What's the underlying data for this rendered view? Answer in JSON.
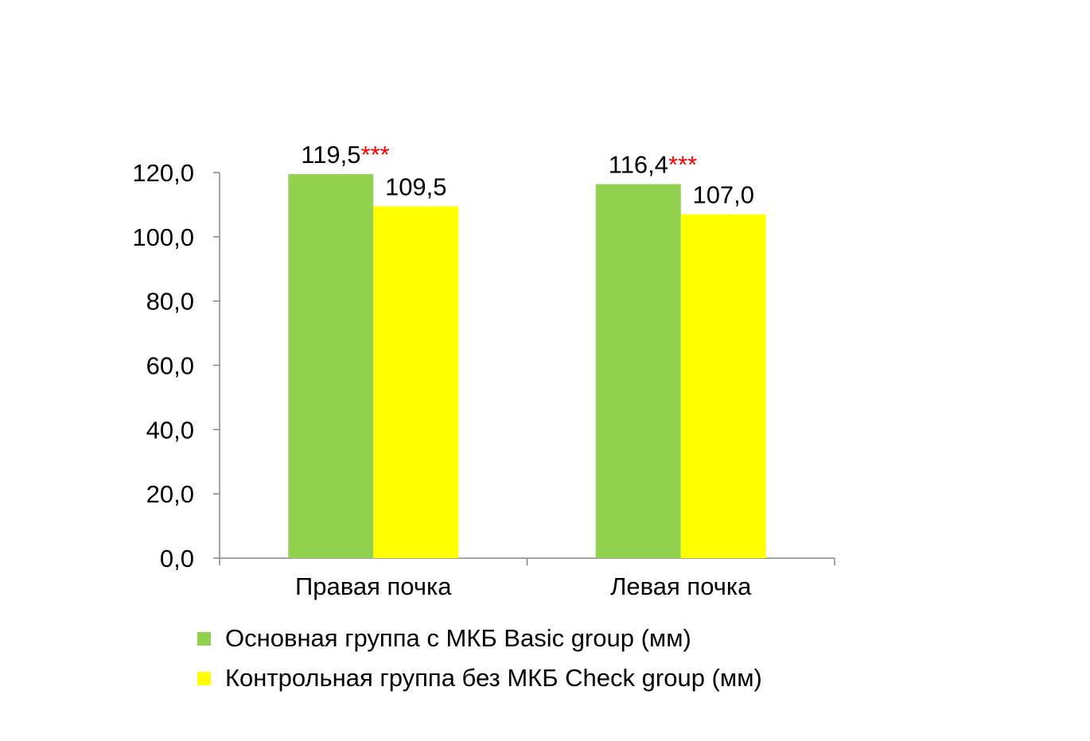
{
  "chart_data": {
    "type": "bar",
    "categories": [
      "Правая почка",
      "Левая почка"
    ],
    "series": [
      {
        "name": "Основная группа с МКБ Basic group (мм)",
        "values": [
          119.5,
          116.4
        ],
        "labels": [
          "119,5",
          "116,4"
        ],
        "marks": [
          "***",
          "***"
        ],
        "color": "#92d050"
      },
      {
        "name": "Контрольная группа без МКБ Check group (мм)",
        "values": [
          109.5,
          107.0
        ],
        "labels": [
          "109,5",
          "107,0"
        ],
        "marks": [
          "",
          ""
        ],
        "color": "#ffff00"
      }
    ],
    "ylim": [
      0,
      120
    ],
    "yticks": [
      0,
      20,
      40,
      60,
      80,
      100,
      120
    ],
    "ytick_labels": [
      "0,0",
      "20,0",
      "40,0",
      "60,0",
      "80,0",
      "100,0",
      "120,0"
    ],
    "mark_color": "#ff0000",
    "axis_color": "#868686",
    "grid": false,
    "legend_position": "bottom"
  }
}
